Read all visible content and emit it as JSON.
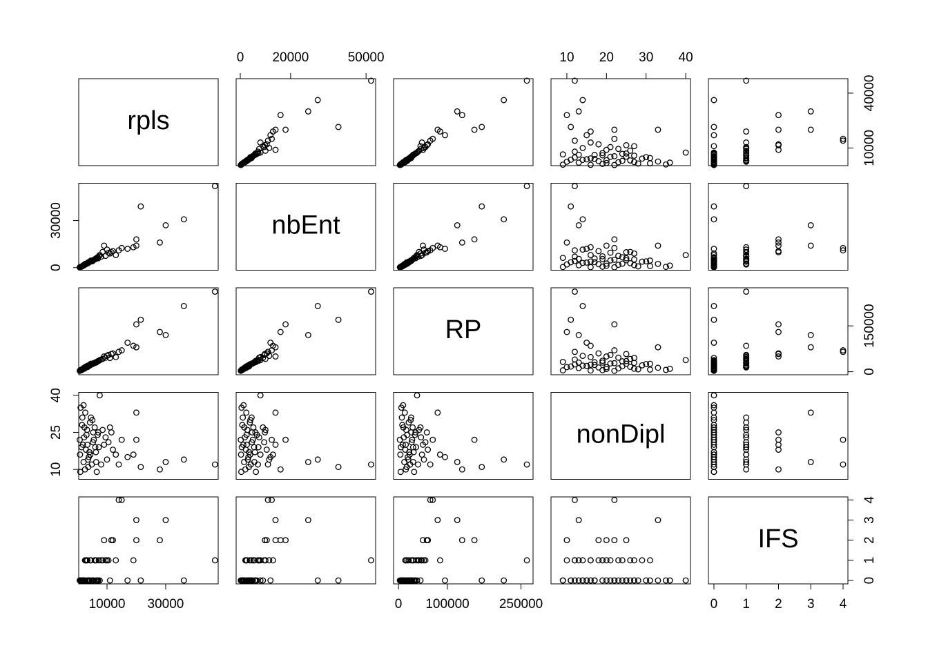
{
  "chart_data": {
    "type": "pairs",
    "point_color": "#000000",
    "series": [
      {
        "name": "rpls",
        "lim": [
          350,
          47900
        ],
        "xticks": [
          10000,
          30000
        ],
        "yticks": [
          10000,
          40000
        ],
        "values": [
          46800,
          36200,
          21500,
          30000,
          20000,
          28000,
          20000,
          17000,
          19000,
          15000,
          14000,
          12000,
          10500,
          9000,
          13000,
          11000,
          8000,
          7000,
          6000,
          5000,
          4000,
          3000,
          2000,
          1500,
          1000,
          2500,
          3500,
          4500,
          5500,
          6500,
          7500,
          8500,
          1800,
          2200,
          2800,
          3200,
          3800,
          4200,
          4800,
          5200,
          5800,
          6200,
          6800,
          7200,
          800,
          1600,
          2600,
          3600,
          9500,
          10000,
          11500,
          700,
          1300,
          2300,
          3300,
          4300,
          5300,
          6300,
          900,
          2000
        ]
      },
      {
        "name": "nbEnt",
        "lim": [
          -1650,
          53800
        ],
        "xticks": [
          0,
          20000,
          50000
        ],
        "yticks": [
          0,
          30000
        ],
        "values": [
          52000,
          30800,
          39000,
          27000,
          18000,
          16000,
          14000,
          12000,
          13000,
          12500,
          11000,
          10500,
          9500,
          14000,
          8000,
          9000,
          7000,
          6000,
          5500,
          4000,
          3500,
          2500,
          1500,
          800,
          500,
          2000,
          3000,
          4500,
          5000,
          6200,
          8000,
          10000,
          1200,
          1800,
          2200,
          2800,
          3200,
          3800,
          4200,
          4600,
          5200,
          5800,
          6600,
          7200,
          300,
          1000,
          2400,
          3400,
          7500,
          11500,
          9800,
          200,
          600,
          1600,
          2600,
          3900,
          4700,
          5600,
          400,
          1300
        ]
      },
      {
        "name": "RP",
        "lim": [
          -9900,
          274600
        ],
        "xticks": [
          0,
          100000,
          250000
        ],
        "yticks": [
          0,
          150000
        ],
        "values": [
          262000,
          215000,
          170000,
          120000,
          155000,
          130000,
          80000,
          95000,
          85000,
          70000,
          65000,
          60000,
          55000,
          50000,
          48000,
          45000,
          40000,
          35000,
          30000,
          25000,
          22000,
          18000,
          12000,
          8000,
          6000,
          15000,
          20000,
          26000,
          28000,
          32000,
          38000,
          42000,
          9000,
          11000,
          14000,
          16000,
          19000,
          21000,
          24000,
          27000,
          29000,
          31000,
          34000,
          36000,
          4000,
          7000,
          13000,
          17000,
          46000,
          52000,
          58000,
          3000,
          5000,
          10000,
          15000,
          23000,
          26000,
          30000,
          4500,
          9500
        ]
      },
      {
        "name": "nonDipl",
        "lim": [
          6,
          41.2
        ],
        "xticks": [
          10,
          20,
          30,
          40
        ],
        "yticks": [
          10,
          25,
          40
        ],
        "values": [
          12,
          14,
          11,
          13,
          22,
          10,
          33,
          15,
          16,
          22,
          12,
          18,
          21,
          20,
          16,
          27,
          12,
          25,
          19,
          30,
          17,
          24,
          13,
          28,
          35,
          10,
          14,
          31,
          22,
          9,
          40,
          26,
          20,
          23,
          18,
          26,
          15,
          29,
          12,
          21,
          27,
          17,
          24,
          19,
          16,
          31,
          33,
          11,
          23,
          14,
          25,
          22,
          19,
          27,
          20,
          16,
          25,
          13,
          9,
          36
        ]
      },
      {
        "name": "IFS",
        "lim": [
          -0.17,
          4.15
        ],
        "xticks": [
          0,
          1,
          2,
          3,
          4
        ],
        "yticks": [
          0,
          1,
          2,
          3,
          4
        ],
        "values": [
          1,
          0,
          0,
          3,
          2,
          2,
          3,
          0,
          1,
          4,
          4,
          2,
          1,
          2,
          1,
          0,
          1,
          0,
          1,
          0,
          0,
          1,
          0,
          0,
          0,
          1,
          0,
          1,
          0,
          0,
          0,
          1,
          0,
          0,
          1,
          0,
          0,
          1,
          0,
          0,
          1,
          0,
          0,
          1,
          0,
          0,
          0,
          0,
          1,
          1,
          2,
          0,
          0,
          0,
          1,
          0,
          0,
          1,
          0,
          0
        ]
      }
    ]
  }
}
